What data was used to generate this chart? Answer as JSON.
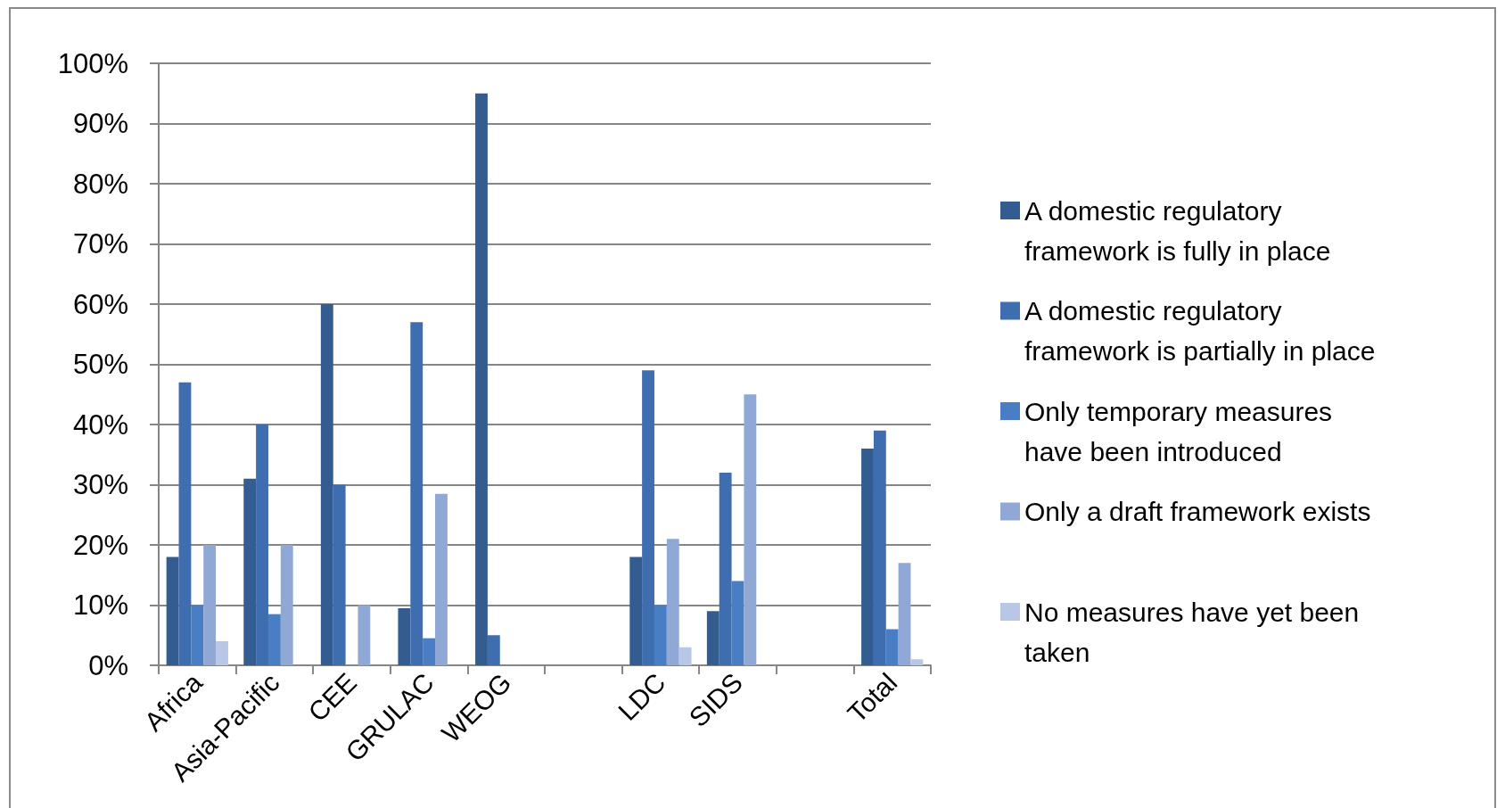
{
  "chart_data": {
    "type": "bar",
    "categories": [
      "Africa",
      "Asia-Pacific",
      "CEE",
      "GRULAC",
      "WEOG",
      null,
      "LDC",
      "SIDS",
      null,
      "Total"
    ],
    "series": [
      {
        "name": "A domestic regulatory framework is fully in place",
        "color": "#335d91",
        "values": [
          18,
          31,
          60,
          9.5,
          95,
          null,
          18,
          9,
          null,
          36
        ]
      },
      {
        "name": "A domestic regulatory framework is partially in place",
        "color": "#3e6eaf",
        "values": [
          47,
          40,
          30,
          57,
          5,
          null,
          49,
          32,
          null,
          39
        ]
      },
      {
        "name": "Only temporary measures have been introduced",
        "color": "#4a7ec4",
        "values": [
          10,
          8.5,
          0,
          4.5,
          0,
          null,
          10,
          14,
          null,
          6
        ]
      },
      {
        "name": "Only a draft framework exists",
        "color": "#8fa8d6",
        "values": [
          20,
          20,
          10,
          28.5,
          0,
          null,
          21,
          45,
          null,
          17
        ]
      },
      {
        "name": "No measures have yet been taken",
        "color": "#b8c7e6",
        "values": [
          4,
          0,
          0,
          0,
          0,
          null,
          3,
          0,
          null,
          1
        ]
      }
    ],
    "ylim": [
      0,
      100
    ],
    "yticks": [
      {
        "value": 0,
        "label": "0%"
      },
      {
        "value": 10,
        "label": "10%"
      },
      {
        "value": 20,
        "label": "20%"
      },
      {
        "value": 30,
        "label": "30%"
      },
      {
        "value": 40,
        "label": "40%"
      },
      {
        "value": 50,
        "label": "50%"
      },
      {
        "value": 60,
        "label": "60%"
      },
      {
        "value": 70,
        "label": "70%"
      },
      {
        "value": 80,
        "label": "80%"
      },
      {
        "value": 90,
        "label": "90%"
      },
      {
        "value": 100,
        "label": "100%"
      }
    ],
    "grid": "y",
    "legend": "right"
  }
}
